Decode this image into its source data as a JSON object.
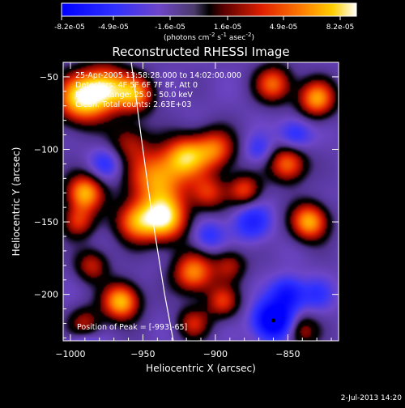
{
  "colorbar": {
    "tick_labels": [
      "-8.2e-05",
      "-4.9e-05",
      "-1.6e-05",
      "1.6e-05",
      "4.9e-05",
      "8.2e-05"
    ],
    "units": "(photons cm",
    "units_exp1": "-2",
    "units_mid": " s",
    "units_exp2": "-1",
    "units_tail": " asec",
    "units_exp3": "-2",
    "units_close": ")"
  },
  "timestamp": "2-Jul-2013 14:20",
  "chart_data": {
    "type": "heatmap",
    "title": "Reconstructed RHESSI Image",
    "xlabel": "Heliocentric X (arcsec)",
    "ylabel": "Heliocentric Y (arcsec)",
    "xlim": [
      -1005,
      -815
    ],
    "ylim": [
      -232,
      -40
    ],
    "colorbar_range": [
      -8.2e-05,
      8.2e-05
    ],
    "x_ticks": [
      -1000,
      -950,
      -900,
      -850
    ],
    "y_ticks": [
      -50,
      -100,
      -150,
      -200
    ],
    "x_tick_labels": [
      "−1000",
      "−950",
      "−900",
      "−850"
    ],
    "y_tick_labels": [
      "−50",
      "−100",
      "−150",
      "−200"
    ],
    "annotations": [
      "25-Apr-2005 13:58:28.000 to 14:02:00.000",
      "Detectors: 4F 5F 6F 7F 8F, Att 0",
      "Energy Range: 25.0 - 50.0 keV",
      "Clean.  Total counts: 2.63E+03"
    ],
    "peak_label": "Position of Peak = [-993,-65]",
    "limb_line": [
      [
        -958,
        -40
      ],
      [
        -950,
        -100
      ],
      [
        -943,
        -150
      ],
      [
        -935,
        -200
      ],
      [
        -929,
        -232
      ]
    ],
    "blobs": [
      {
        "x": -993,
        "y": -65,
        "amp": 1.0,
        "s": 12
      },
      {
        "x": -975,
        "y": -58,
        "amp": 0.9,
        "s": 11
      },
      {
        "x": -955,
        "y": -62,
        "amp": 0.75,
        "s": 9
      },
      {
        "x": -960,
        "y": -95,
        "amp": 0.4,
        "s": 10
      },
      {
        "x": -940,
        "y": -120,
        "amp": 0.85,
        "s": 14
      },
      {
        "x": -920,
        "y": -105,
        "amp": 0.8,
        "s": 10
      },
      {
        "x": -935,
        "y": -148,
        "amp": 1.0,
        "s": 11
      },
      {
        "x": -955,
        "y": -150,
        "amp": 0.75,
        "s": 10
      },
      {
        "x": -900,
        "y": -100,
        "amp": 0.7,
        "s": 10
      },
      {
        "x": -905,
        "y": -130,
        "amp": 0.55,
        "s": 9
      },
      {
        "x": -880,
        "y": -128,
        "amp": 0.6,
        "s": 8
      },
      {
        "x": -850,
        "y": -110,
        "amp": 0.75,
        "s": 9
      },
      {
        "x": -830,
        "y": -65,
        "amp": 0.85,
        "s": 9
      },
      {
        "x": -860,
        "y": -55,
        "amp": 0.7,
        "s": 9
      },
      {
        "x": -835,
        "y": -150,
        "amp": 0.9,
        "s": 9
      },
      {
        "x": -990,
        "y": -130,
        "amp": 0.9,
        "s": 9
      },
      {
        "x": -995,
        "y": -150,
        "amp": 0.55,
        "s": 8
      },
      {
        "x": -985,
        "y": -180,
        "amp": 0.5,
        "s": 8
      },
      {
        "x": -965,
        "y": -205,
        "amp": 0.95,
        "s": 9
      },
      {
        "x": -915,
        "y": -185,
        "amp": 0.8,
        "s": 10
      },
      {
        "x": -895,
        "y": -205,
        "amp": 0.55,
        "s": 8
      },
      {
        "x": -915,
        "y": -220,
        "amp": 0.5,
        "s": 8
      },
      {
        "x": -890,
        "y": -180,
        "amp": 0.45,
        "s": 8
      },
      {
        "x": -990,
        "y": -220,
        "amp": 0.45,
        "s": 8
      },
      {
        "x": -975,
        "y": -110,
        "amp": -0.35,
        "s": 8
      },
      {
        "x": -875,
        "y": -150,
        "amp": -0.45,
        "s": 9
      },
      {
        "x": -845,
        "y": -90,
        "amp": -0.4,
        "s": 8
      },
      {
        "x": -860,
        "y": -218,
        "amp": -1.0,
        "s": 9
      },
      {
        "x": -850,
        "y": -200,
        "amp": -0.6,
        "s": 8
      },
      {
        "x": -990,
        "y": -240,
        "amp": -0.5,
        "s": 8
      },
      {
        "x": -905,
        "y": -160,
        "amp": -0.35,
        "s": 8
      },
      {
        "x": -830,
        "y": -200,
        "amp": -0.3,
        "s": 8
      },
      {
        "x": -840,
        "y": -225,
        "amp": 0.45,
        "s": 8
      },
      {
        "x": -870,
        "y": -100,
        "amp": -0.3,
        "s": 7
      }
    ]
  }
}
